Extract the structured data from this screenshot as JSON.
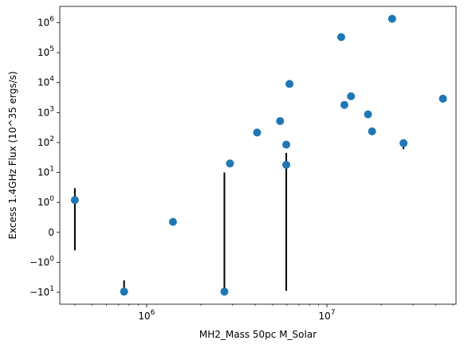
{
  "chart_data": {
    "type": "scatter",
    "title": "",
    "xlabel": "MH2_Mass 50pc M_Solar",
    "ylabel": "Excess 1.4GHz Flux (10^35 ergs/s)",
    "xscale": "log",
    "yscale": "symlog",
    "symlog_linthresh": 1,
    "xlim": [
      330000,
      52000000
    ],
    "ylim": [
      -25,
      3500000
    ],
    "grid": false,
    "legend": "none",
    "colors": {
      "marker": "#1f77b4",
      "errorbar": "#000000",
      "axes": "#000000",
      "background": "#ffffff"
    },
    "x_ticks": [
      {
        "value": 1000000,
        "label_base": "10",
        "label_exp": "6"
      },
      {
        "value": 10000000,
        "label_base": "10",
        "label_exp": "7"
      }
    ],
    "x_minor_ticks": [
      400000,
      500000,
      600000,
      700000,
      800000,
      900000,
      2000000,
      3000000,
      4000000,
      5000000,
      6000000,
      7000000,
      8000000,
      9000000,
      20000000,
      30000000,
      40000000,
      50000000
    ],
    "y_ticks": [
      {
        "value": 1000000,
        "label_base": "10",
        "label_exp": "6"
      },
      {
        "value": 100000,
        "label_base": "10",
        "label_exp": "5"
      },
      {
        "value": 10000,
        "label_base": "10",
        "label_exp": "4"
      },
      {
        "value": 1000,
        "label_base": "10",
        "label_exp": "3"
      },
      {
        "value": 100,
        "label_base": "10",
        "label_exp": "2"
      },
      {
        "value": 10,
        "label_base": "10",
        "label_exp": "1"
      },
      {
        "value": 1,
        "label_base": "10",
        "label_exp": "0"
      },
      {
        "value": 0,
        "label_base": "0",
        "label_exp": ""
      },
      {
        "value": -1,
        "label_base": "−10",
        "label_exp": "0"
      },
      {
        "value": -10,
        "label_base": "−10",
        "label_exp": "1"
      }
    ],
    "points": [
      {
        "x": 400000,
        "y": 1.2,
        "yerr_low": -0.6,
        "yerr_high": 3.0
      },
      {
        "x": 750000,
        "y": -9.5,
        "yerr_low": -11.5,
        "yerr_high": -4.0
      },
      {
        "x": 1400000,
        "y": 0.35,
        "yerr_low": null,
        "yerr_high": null
      },
      {
        "x": 2700000,
        "y": -9.5,
        "yerr_low": -12.0,
        "yerr_high": 10
      },
      {
        "x": 2900000,
        "y": 20,
        "yerr_low": null,
        "yerr_high": null
      },
      {
        "x": 4100000,
        "y": 215,
        "yerr_low": null,
        "yerr_high": null
      },
      {
        "x": 5500000,
        "y": 520,
        "yerr_low": null,
        "yerr_high": null
      },
      {
        "x": 5950000,
        "y": 18,
        "yerr_low": -9.0,
        "yerr_high": 45
      },
      {
        "x": 5950000,
        "y": 85,
        "yerr_low": null,
        "yerr_high": null
      },
      {
        "x": 6200000,
        "y": 9000,
        "yerr_low": null,
        "yerr_high": null
      },
      {
        "x": 12000000,
        "y": 330000,
        "yerr_low": null,
        "yerr_high": null
      },
      {
        "x": 12500000,
        "y": 1800,
        "yerr_low": null,
        "yerr_high": null
      },
      {
        "x": 13600000,
        "y": 3500,
        "yerr_low": null,
        "yerr_high": null
      },
      {
        "x": 16900000,
        "y": 870,
        "yerr_low": null,
        "yerr_high": null
      },
      {
        "x": 17800000,
        "y": 235,
        "yerr_low": null,
        "yerr_high": null
      },
      {
        "x": 23000000,
        "y": 1350000,
        "yerr_low": null,
        "yerr_high": null
      },
      {
        "x": 26600000,
        "y": 95,
        "yerr_low": 60,
        "yerr_high": 115
      },
      {
        "x": 44000000,
        "y": 2900,
        "yerr_low": null,
        "yerr_high": null
      }
    ]
  }
}
